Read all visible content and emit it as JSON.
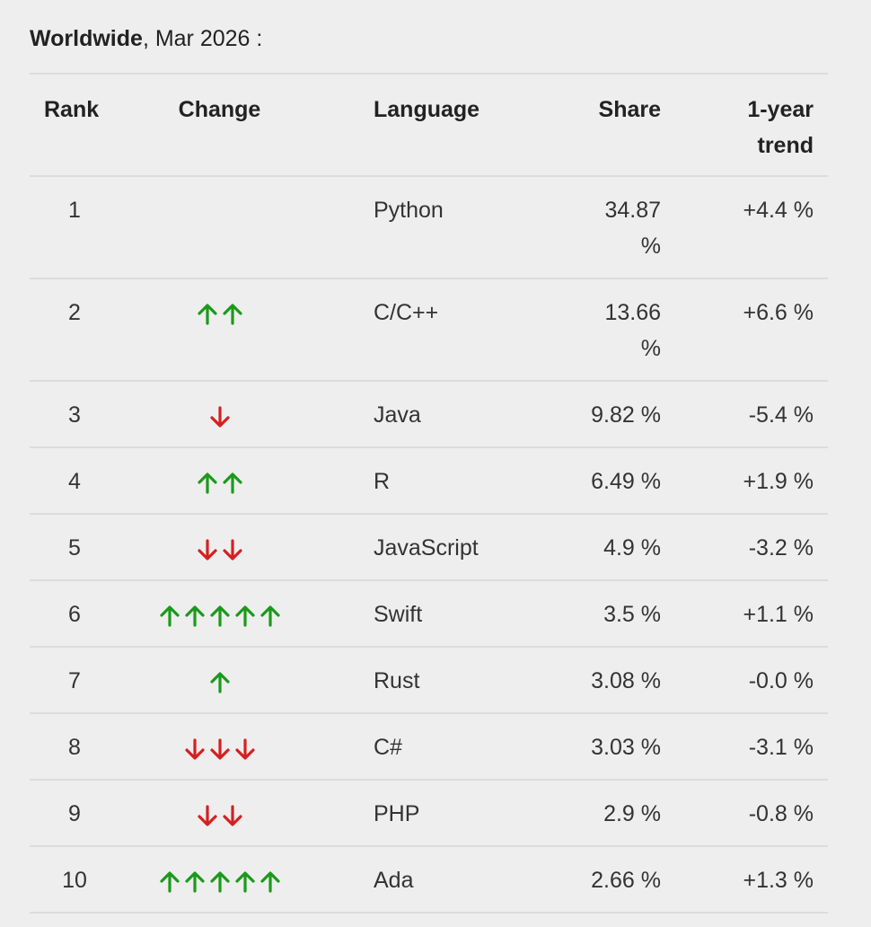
{
  "heading": {
    "bold": "Worldwide",
    "rest": ", Mar 2026 :"
  },
  "table": {
    "headers": {
      "rank": "Rank",
      "change": "Change",
      "language": "Language",
      "share": "Share",
      "trend_line1": "1-year",
      "trend_line2": "trend"
    },
    "rows": [
      {
        "rank": "1",
        "change": {
          "dir": "none",
          "count": 0
        },
        "language": "Python",
        "share_line1": "34.87",
        "share_line2": "%",
        "trend": "+4.4 %"
      },
      {
        "rank": "2",
        "change": {
          "dir": "up",
          "count": 2
        },
        "language": "C/C++",
        "share_line1": "13.66",
        "share_line2": "%",
        "trend": "+6.6 %"
      },
      {
        "rank": "3",
        "change": {
          "dir": "down",
          "count": 1
        },
        "language": "Java",
        "share_line1": "9.82 %",
        "share_line2": "",
        "trend": "-5.4 %"
      },
      {
        "rank": "4",
        "change": {
          "dir": "up",
          "count": 2
        },
        "language": "R",
        "share_line1": "6.49 %",
        "share_line2": "",
        "trend": "+1.9 %"
      },
      {
        "rank": "5",
        "change": {
          "dir": "down",
          "count": 2
        },
        "language": "JavaScript",
        "share_line1": "4.9 %",
        "share_line2": "",
        "trend": "-3.2 %"
      },
      {
        "rank": "6",
        "change": {
          "dir": "up",
          "count": 5
        },
        "language": "Swift",
        "share_line1": "3.5 %",
        "share_line2": "",
        "trend": "+1.1 %"
      },
      {
        "rank": "7",
        "change": {
          "dir": "up",
          "count": 1
        },
        "language": "Rust",
        "share_line1": "3.08 %",
        "share_line2": "",
        "trend": "-0.0 %"
      },
      {
        "rank": "8",
        "change": {
          "dir": "down",
          "count": 3
        },
        "language": "C#",
        "share_line1": "3.03 %",
        "share_line2": "",
        "trend": "-3.1 %"
      },
      {
        "rank": "9",
        "change": {
          "dir": "down",
          "count": 2
        },
        "language": "PHP",
        "share_line1": "2.9 %",
        "share_line2": "",
        "trend": "-0.8 %"
      },
      {
        "rank": "10",
        "change": {
          "dir": "up",
          "count": 5
        },
        "language": "Ada",
        "share_line1": "2.66 %",
        "share_line2": "",
        "trend": "+1.3 %"
      }
    ]
  },
  "colors": {
    "up_arrow": "#1a9a1a",
    "down_arrow": "#d62020",
    "background": "#eeeeee",
    "rule": "#dcdcdc"
  },
  "icons": {
    "up": "arrow-up-icon",
    "down": "arrow-down-icon"
  }
}
